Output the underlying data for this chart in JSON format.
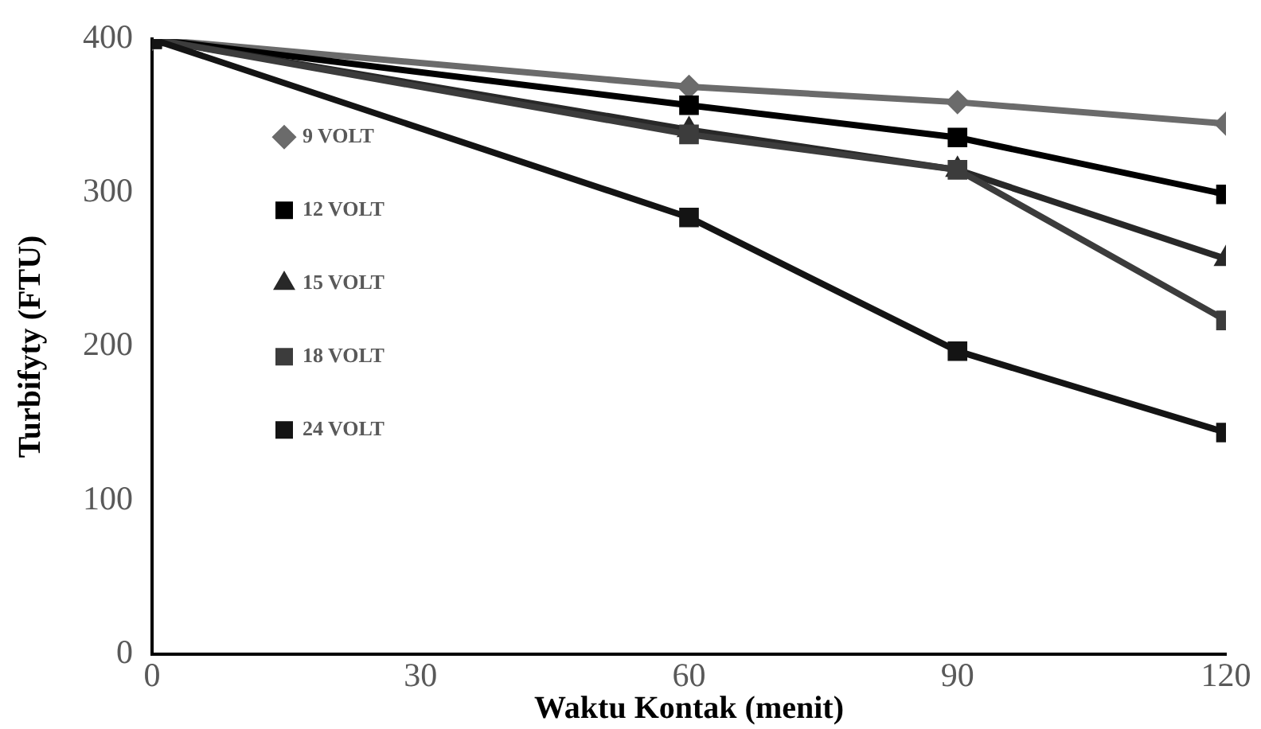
{
  "chart_data": {
    "type": "line",
    "xlabel": "Waktu Kontak (menit)",
    "ylabel": "Turbifyty (FTU)",
    "xlim": [
      0,
      120
    ],
    "xticks": [
      0,
      30,
      60,
      90,
      120
    ],
    "ylim": [
      0,
      400
    ],
    "yticks": [
      0,
      100,
      200,
      300,
      400
    ],
    "grid": false,
    "legend": "left",
    "x": [
      0,
      60,
      90,
      120
    ],
    "series": [
      {
        "name": "9 VOLT",
        "color": "#6b6b6b",
        "marker": "diamond",
        "values": [
          400,
          369,
          359,
          345
        ]
      },
      {
        "name": "12 VOLT",
        "color": "#000000",
        "marker": "square",
        "values": [
          400,
          357,
          336,
          299
        ]
      },
      {
        "name": "15 VOLT",
        "color": "#282828",
        "marker": "triangle",
        "values": [
          400,
          341,
          315,
          257
        ]
      },
      {
        "name": "18 VOLT",
        "color": "#3c3c3c",
        "marker": "square",
        "values": [
          400,
          338,
          315,
          217
        ]
      },
      {
        "name": "24 VOLT",
        "color": "#141414",
        "marker": "square",
        "values": [
          400,
          284,
          197,
          144
        ]
      }
    ]
  }
}
